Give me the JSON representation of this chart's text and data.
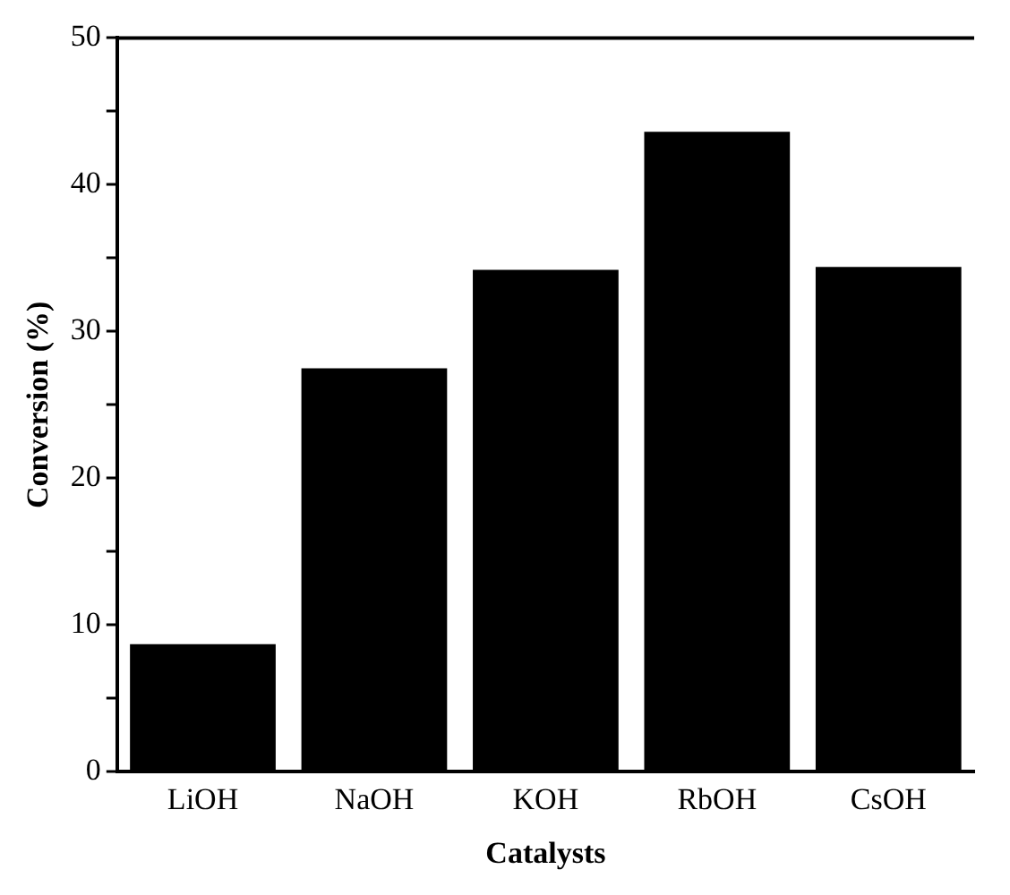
{
  "chart_data": {
    "type": "bar",
    "xlabel": "Catalysts",
    "ylabel": "Conversion (%)",
    "categories": [
      "LiOH",
      "NaOH",
      "KOH",
      "RbOH",
      "CsOH"
    ],
    "values": [
      8.7,
      27.5,
      34.2,
      43.6,
      34.4
    ],
    "color": "#000000",
    "ylim": [
      0,
      50
    ],
    "yticks": [
      0,
      {
        "value": 5,
        "label": null
      },
      10,
      {
        "value": 15,
        "label": null
      },
      20,
      {
        "value": 25,
        "label": null
      },
      30,
      {
        "value": 35,
        "label": null
      },
      40,
      {
        "value": 45,
        "label": null
      },
      50
    ],
    "grid": false,
    "legend": false
  }
}
